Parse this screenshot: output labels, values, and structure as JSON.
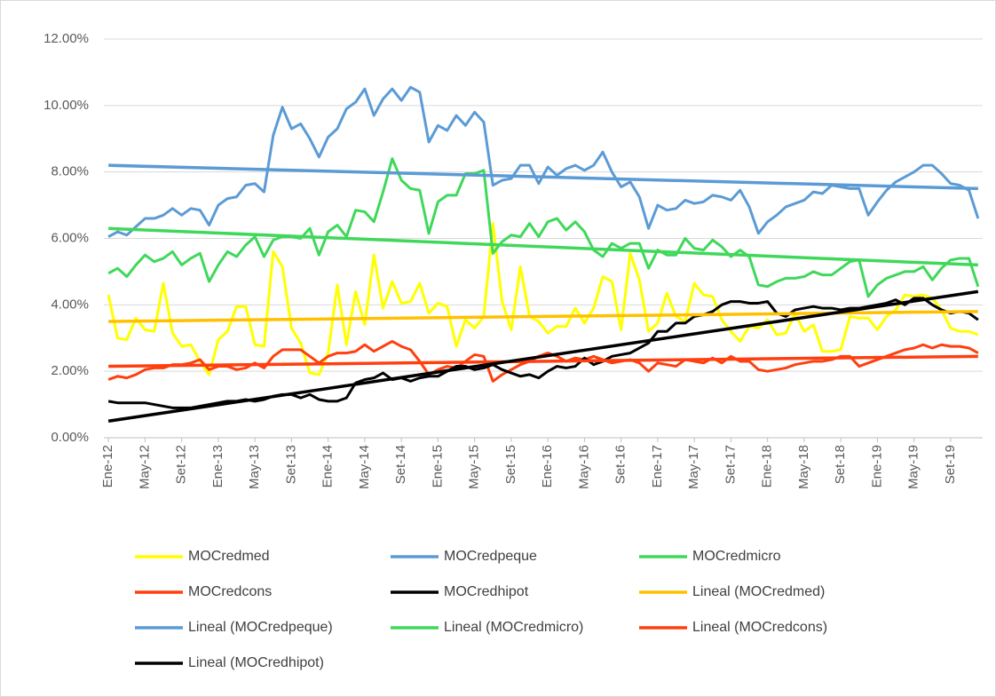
{
  "chart_data": {
    "type": "line",
    "categories": [
      "Ene-12",
      null,
      null,
      null,
      "May-12",
      null,
      null,
      null,
      "Set-12",
      null,
      null,
      null,
      "Ene-13",
      null,
      null,
      null,
      "May-13",
      null,
      null,
      null,
      "Set-13",
      null,
      null,
      null,
      "Ene-14",
      null,
      null,
      null,
      "May-14",
      null,
      null,
      null,
      "Set-14",
      null,
      null,
      null,
      "Ene-15",
      null,
      null,
      null,
      "May-15",
      null,
      null,
      null,
      "Set-15",
      null,
      null,
      null,
      "Ene-16",
      null,
      null,
      null,
      "May-16",
      null,
      null,
      null,
      "Set-16",
      null,
      null,
      null,
      "Ene-17",
      null,
      null,
      null,
      "May-17",
      null,
      null,
      null,
      "Set-17",
      null,
      null,
      null,
      "Ene-18",
      null,
      null,
      null,
      "May-18",
      null,
      null,
      null,
      "Set-18",
      null,
      null,
      null,
      "Ene-19",
      null,
      null,
      null,
      "May-19",
      null,
      null,
      null,
      "Set-19",
      null,
      null,
      null
    ],
    "series": [
      {
        "name": "MOCredmed",
        "color": "#ffff00",
        "values": [
          4.3,
          3.0,
          2.95,
          3.6,
          3.25,
          3.2,
          4.65,
          3.15,
          2.75,
          2.8,
          2.3,
          1.9,
          2.95,
          3.2,
          3.95,
          3.95,
          2.8,
          2.75,
          5.6,
          5.15,
          3.3,
          2.85,
          1.95,
          1.9,
          2.55,
          4.6,
          2.8,
          4.4,
          3.4,
          5.5,
          3.9,
          4.7,
          4.05,
          4.1,
          4.65,
          3.75,
          4.05,
          3.95,
          2.75,
          3.55,
          3.3,
          3.65,
          6.45,
          4.1,
          3.25,
          5.15,
          3.65,
          3.5,
          3.15,
          3.35,
          3.35,
          3.9,
          3.45,
          3.9,
          4.85,
          4.7,
          3.25,
          5.55,
          4.75,
          3.2,
          3.45,
          4.35,
          3.65,
          3.5,
          4.65,
          4.3,
          4.25,
          3.55,
          3.2,
          2.9,
          3.35,
          3.3,
          3.55,
          3.1,
          3.15,
          3.75,
          3.2,
          3.4,
          2.6,
          2.6,
          2.65,
          3.65,
          3.6,
          3.6,
          3.25,
          3.65,
          3.85,
          4.3,
          4.25,
          4.3,
          4.2,
          3.85,
          3.3,
          3.2,
          3.2,
          3.1
        ]
      },
      {
        "name": "MOCredpeque",
        "color": "#5b9bd5",
        "values": [
          6.05,
          6.2,
          6.1,
          6.35,
          6.6,
          6.6,
          6.7,
          6.9,
          6.7,
          6.9,
          6.85,
          6.4,
          7.0,
          7.2,
          7.25,
          7.6,
          7.65,
          7.4,
          9.1,
          9.95,
          9.3,
          9.45,
          9.0,
          8.45,
          9.05,
          9.3,
          9.9,
          10.1,
          10.5,
          9.7,
          10.2,
          10.5,
          10.15,
          10.55,
          10.4,
          8.9,
          9.4,
          9.25,
          9.7,
          9.4,
          9.8,
          9.5,
          7.6,
          7.75,
          7.8,
          8.2,
          8.2,
          7.65,
          8.15,
          7.9,
          8.1,
          8.2,
          8.05,
          8.2,
          8.6,
          8.0,
          7.55,
          7.7,
          7.25,
          6.3,
          7.0,
          6.85,
          6.9,
          7.15,
          7.05,
          7.1,
          7.3,
          7.25,
          7.15,
          7.45,
          6.95,
          6.15,
          6.5,
          6.7,
          6.95,
          7.05,
          7.15,
          7.4,
          7.35,
          7.6,
          7.55,
          7.5,
          7.5,
          6.7,
          7.1,
          7.45,
          7.7,
          7.85,
          8.0,
          8.2,
          8.2,
          7.95,
          7.65,
          7.6,
          7.45,
          6.6
        ]
      },
      {
        "name": "MOCredmicro",
        "color": "#3fd85a",
        "values": [
          4.95,
          5.1,
          4.85,
          5.2,
          5.5,
          5.3,
          5.4,
          5.6,
          5.2,
          5.4,
          5.55,
          4.7,
          5.2,
          5.6,
          5.45,
          5.8,
          6.05,
          5.45,
          5.95,
          6.05,
          6.05,
          6.0,
          6.3,
          5.5,
          6.2,
          6.4,
          6.05,
          6.85,
          6.8,
          6.5,
          7.4,
          8.4,
          7.75,
          7.5,
          7.45,
          6.15,
          7.1,
          7.3,
          7.3,
          7.95,
          7.95,
          8.05,
          5.55,
          5.9,
          6.1,
          6.05,
          6.45,
          6.05,
          6.5,
          6.6,
          6.25,
          6.5,
          6.2,
          5.65,
          5.45,
          5.85,
          5.7,
          5.85,
          5.85,
          5.1,
          5.65,
          5.5,
          5.5,
          6.0,
          5.7,
          5.65,
          5.95,
          5.75,
          5.45,
          5.65,
          5.45,
          4.6,
          4.55,
          4.7,
          4.8,
          4.8,
          4.85,
          5.0,
          4.9,
          4.9,
          5.1,
          5.3,
          5.35,
          4.25,
          4.6,
          4.8,
          4.9,
          5.0,
          5.0,
          5.15,
          4.75,
          5.1,
          5.35,
          5.4,
          5.4,
          4.55
        ]
      },
      {
        "name": "MOCredcons",
        "color": "#ff3f0f",
        "values": [
          1.75,
          1.85,
          1.8,
          1.9,
          2.05,
          2.1,
          2.1,
          2.2,
          2.2,
          2.25,
          2.35,
          2.05,
          2.15,
          2.15,
          2.05,
          2.1,
          2.25,
          2.1,
          2.45,
          2.65,
          2.65,
          2.65,
          2.45,
          2.25,
          2.45,
          2.55,
          2.55,
          2.6,
          2.8,
          2.6,
          2.75,
          2.9,
          2.75,
          2.65,
          2.3,
          1.9,
          2.05,
          2.15,
          2.1,
          2.3,
          2.5,
          2.45,
          1.7,
          1.9,
          2.05,
          2.2,
          2.3,
          2.45,
          2.55,
          2.45,
          2.3,
          2.4,
          2.35,
          2.45,
          2.35,
          2.25,
          2.3,
          2.35,
          2.25,
          2.0,
          2.25,
          2.2,
          2.15,
          2.35,
          2.3,
          2.25,
          2.4,
          2.25,
          2.45,
          2.3,
          2.3,
          2.05,
          2.0,
          2.05,
          2.1,
          2.2,
          2.25,
          2.3,
          2.3,
          2.35,
          2.45,
          2.45,
          2.15,
          2.25,
          2.35,
          2.45,
          2.55,
          2.65,
          2.7,
          2.8,
          2.7,
          2.8,
          2.75,
          2.75,
          2.7,
          2.55
        ]
      },
      {
        "name": "MOCredhipot",
        "color": "#000000",
        "values": [
          1.1,
          1.05,
          1.05,
          1.05,
          1.05,
          1.0,
          0.95,
          0.9,
          0.9,
          0.9,
          0.95,
          1.0,
          1.05,
          1.1,
          1.1,
          1.15,
          1.1,
          1.15,
          1.25,
          1.3,
          1.3,
          1.2,
          1.3,
          1.15,
          1.1,
          1.1,
          1.2,
          1.65,
          1.75,
          1.8,
          1.95,
          1.75,
          1.8,
          1.7,
          1.8,
          1.85,
          1.85,
          2.0,
          2.15,
          2.15,
          2.05,
          2.1,
          2.2,
          2.05,
          1.95,
          1.85,
          1.9,
          1.8,
          2.0,
          2.15,
          2.1,
          2.15,
          2.4,
          2.2,
          2.3,
          2.45,
          2.5,
          2.55,
          2.7,
          2.85,
          3.2,
          3.2,
          3.45,
          3.45,
          3.65,
          3.7,
          3.8,
          4.0,
          4.1,
          4.1,
          4.05,
          4.05,
          4.1,
          3.75,
          3.65,
          3.85,
          3.9,
          3.95,
          3.9,
          3.9,
          3.85,
          3.9,
          3.9,
          3.95,
          4.0,
          4.05,
          4.15,
          4.0,
          4.2,
          4.2,
          4.0,
          3.85,
          3.75,
          3.8,
          3.75,
          3.55
        ]
      }
    ],
    "trendlines": [
      {
        "name": "Lineal (MOCredmed)",
        "color": "#ffc000",
        "start": 3.5,
        "end": 3.8
      },
      {
        "name": "Lineal (MOCredpeque)",
        "color": "#5b9bd5",
        "start": 8.2,
        "end": 7.5
      },
      {
        "name": "Lineal (MOCredmicro)",
        "color": "#3fd85a",
        "start": 6.3,
        "end": 5.2
      },
      {
        "name": "Lineal (MOCredcons)",
        "color": "#ff3f0f",
        "start": 2.15,
        "end": 2.45
      },
      {
        "name": "Lineal (MOCredhipot)",
        "color": "#000000",
        "start": 0.5,
        "end": 4.4
      }
    ],
    "ylim": [
      0,
      12
    ],
    "yticks": [
      {
        "value": 0,
        "label": "0.00%"
      },
      {
        "value": 2,
        "label": "2.00%"
      },
      {
        "value": 4,
        "label": "4.00%"
      },
      {
        "value": 6,
        "label": "6.00%"
      },
      {
        "value": 8,
        "label": "8.00%"
      },
      {
        "value": 10,
        "label": "10.00%"
      },
      {
        "value": 12,
        "label": "12.00%"
      }
    ],
    "grid": true
  }
}
